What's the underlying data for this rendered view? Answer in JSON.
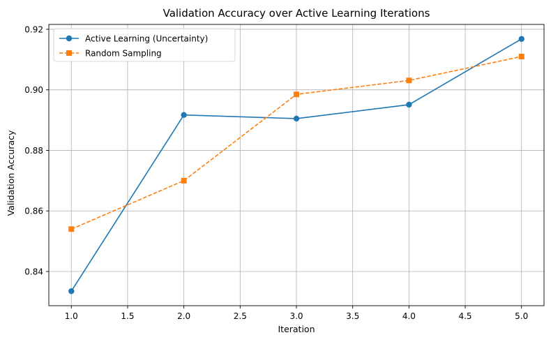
{
  "chart_data": {
    "type": "line",
    "title": "Validation Accuracy over Active Learning Iterations",
    "xlabel": "Iteration",
    "ylabel": "Validation Accuracy",
    "xlim": [
      0.8,
      5.2
    ],
    "ylim": [
      0.8287,
      0.9216
    ],
    "xticks": [
      1.0,
      1.5,
      2.0,
      2.5,
      3.0,
      3.5,
      4.0,
      4.5,
      5.0
    ],
    "xtick_labels": [
      "1.0",
      "1.5",
      "2.0",
      "2.5",
      "3.0",
      "3.5",
      "4.0",
      "4.5",
      "5.0"
    ],
    "yticks": [
      0.84,
      0.86,
      0.88,
      0.9,
      0.92
    ],
    "ytick_labels": [
      "0.84",
      "0.86",
      "0.88",
      "0.90",
      "0.92"
    ],
    "grid": true,
    "legend_position": "top-left",
    "x": [
      1,
      2,
      3,
      4,
      5
    ],
    "series": [
      {
        "name": "Active Learning (Uncertainty)",
        "values": [
          0.8335,
          0.8917,
          0.8905,
          0.8951,
          0.9168
        ],
        "color": "#1f77b4",
        "marker": "circle",
        "line_style": "solid"
      },
      {
        "name": "Random Sampling",
        "values": [
          0.854,
          0.87,
          0.8985,
          0.9031,
          0.911
        ],
        "color": "#ff7f0e",
        "marker": "square",
        "line_style": "dashed"
      }
    ]
  }
}
